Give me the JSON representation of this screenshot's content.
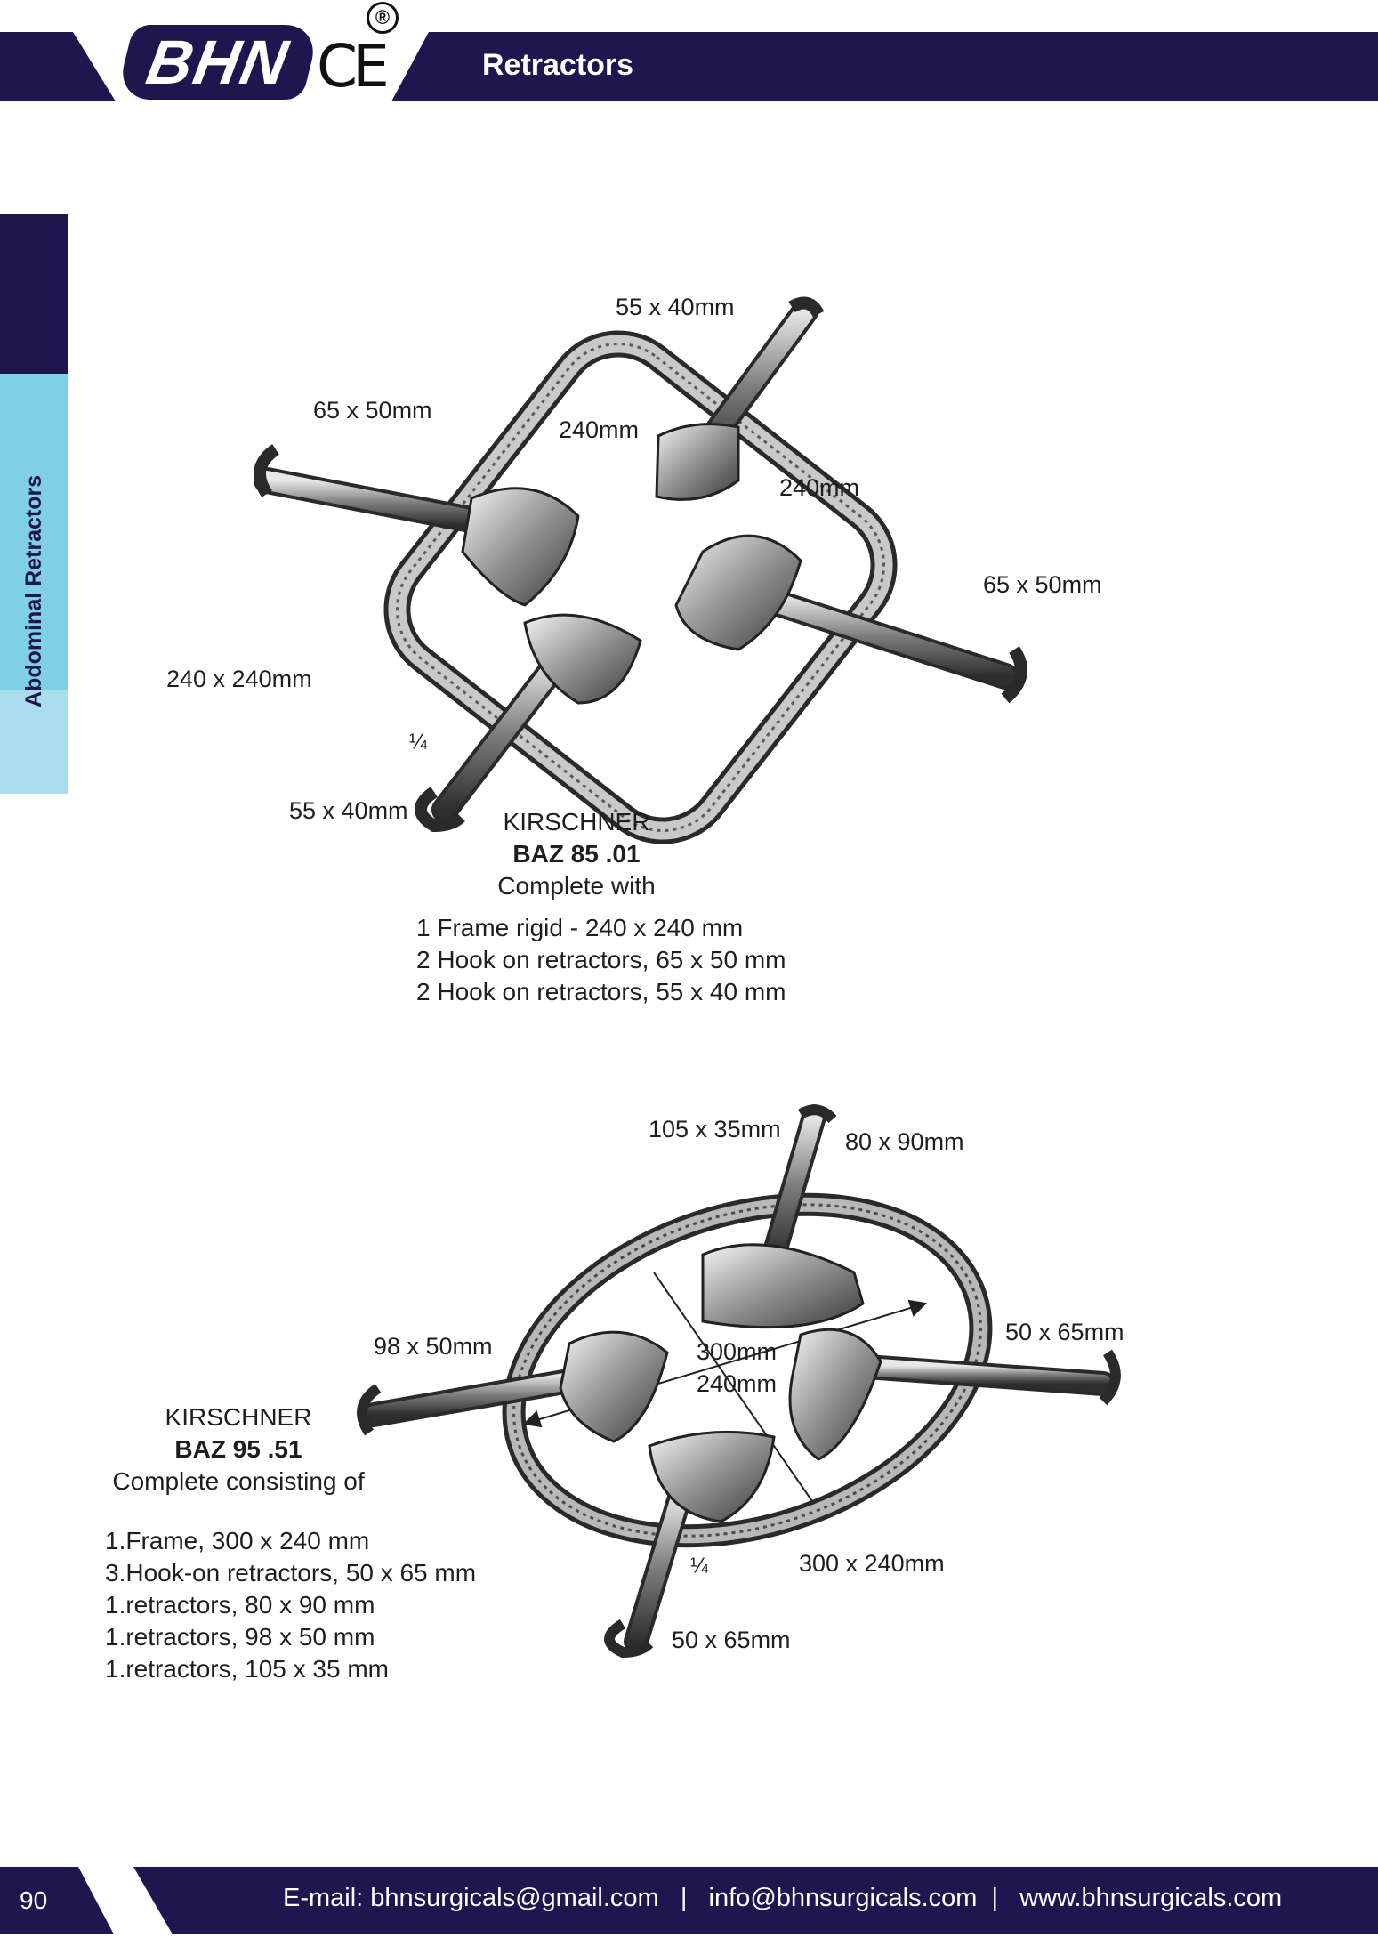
{
  "header": {
    "brand": "BHN",
    "ce_mark": "CE",
    "registered": "®",
    "title": "Retractors"
  },
  "sidebar": {
    "label": "Abdominal Retractors"
  },
  "product1": {
    "labels": {
      "top_hook": "55 x 40mm",
      "left_hook": "65 x 50mm",
      "frame_top": "240mm",
      "frame_right": "240mm",
      "right_hook": "65 x 50mm",
      "frame_size": "240 x 240mm",
      "fraction": "¼",
      "bottom_hook": "55 x 40mm"
    },
    "name": "KIRSCHNER",
    "code": "BAZ 85 .01",
    "subtitle": "Complete with",
    "contents": [
      "1 Frame rigid - 240 x 240 mm",
      "2 Hook on retractors, 65 x 50 mm",
      "2 Hook on retractors, 55 x 40 mm"
    ]
  },
  "product2": {
    "labels": {
      "top_hook": "105 x 35mm",
      "top_blade": "80 x 90mm",
      "left_hook": "98 x 50mm",
      "diag1": "300mm",
      "diag2": "240mm",
      "right_hook": "50 x 65mm",
      "fraction": "¼",
      "frame_size": "300 x 240mm",
      "bottom_hook": "50 x 65mm"
    },
    "name": "KIRSCHNER",
    "code": "BAZ 95 .51",
    "subtitle": "Complete consisting of",
    "contents": [
      "1.Frame, 300 x 240 mm",
      "3.Hook-on retractors, 50 x 65 mm",
      "1.retractors, 80 x 90 mm",
      "1.retractors, 98 x 50 mm",
      "1.retractors, 105 x 35 mm"
    ]
  },
  "footer": {
    "page_number": "90",
    "contact": "E-mail: bhnsurgicals@gmail.com   |   info@bhnsurgicals.com  |   www.bhnsurgicals.com"
  },
  "colors": {
    "navy": "#1f1650",
    "light_blue": "#7fcfe8",
    "pale_blue": "#a9dcec"
  }
}
